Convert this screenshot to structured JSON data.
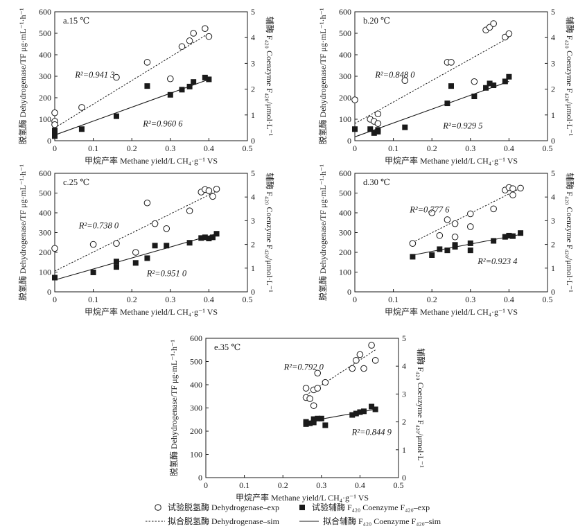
{
  "figure": {
    "x_axis_label": "甲烷产率 Methane yield/L CH₄·g⁻¹ VS",
    "left_axis_label": "脱氢酶 Dehydrogenase/TF μg·mL⁻¹·h⁻¹",
    "right_axis_label": "辅酶 F₄₂₀ Coenzyme F₄₂₀/μmol·L⁻¹",
    "legend": [
      {
        "key": "dh_exp",
        "label": "试验脱氢酶 Dehydrogenase–exp"
      },
      {
        "key": "f420_exp",
        "label": "试验辅酶 F₄₂₀ Coenzyme F₄₂₀–exp"
      },
      {
        "key": "dh_sim",
        "label": "拟合脱氢酶 Dehydrogenase–sim"
      },
      {
        "key": "f420_sim",
        "label": "拟合辅酶 F₄₂₀ Coenzyme F₄₂₀–sim"
      }
    ]
  },
  "chart_data": [
    {
      "type": "scatter",
      "panel_label": "a.15 ℃",
      "xlim": [
        0,
        0.5
      ],
      "xticks": [
        0,
        0.1,
        0.2,
        0.3,
        0.4,
        0.5
      ],
      "ylim_left": [
        0,
        600
      ],
      "yticks_left": [
        0,
        100,
        200,
        300,
        400,
        500,
        600
      ],
      "ylim_right": [
        0,
        5
      ],
      "yticks_right": [
        0,
        1,
        2,
        3,
        4,
        5
      ],
      "dehydrogenase_exp": [
        [
          0,
          130
        ],
        [
          0,
          90
        ],
        [
          0,
          75
        ],
        [
          0.07,
          155
        ],
        [
          0.16,
          295
        ],
        [
          0.24,
          365
        ],
        [
          0.3,
          288
        ],
        [
          0.33,
          438
        ],
        [
          0.35,
          465
        ],
        [
          0.36,
          500
        ],
        [
          0.39,
          522
        ],
        [
          0.4,
          485
        ]
      ],
      "f420_exp": [
        [
          0,
          0.4
        ],
        [
          0,
          0.3
        ],
        [
          0,
          0.22
        ],
        [
          0,
          0.18
        ],
        [
          0.07,
          0.45
        ],
        [
          0.16,
          0.95
        ],
        [
          0.24,
          2.12
        ],
        [
          0.3,
          1.78
        ],
        [
          0.33,
          1.98
        ],
        [
          0.35,
          2.1
        ],
        [
          0.36,
          2.28
        ],
        [
          0.39,
          2.45
        ],
        [
          0.4,
          2.38
        ]
      ],
      "dehydrogenase_fit": [
        [
          0,
          60
        ],
        [
          0.4,
          500
        ]
      ],
      "f420_fit": [
        [
          0,
          0.22
        ],
        [
          0.4,
          2.38
        ]
      ],
      "r2_dehydrogenase": "R²=0.941 3",
      "r2_f420": "R²=0.960 6"
    },
    {
      "type": "scatter",
      "panel_label": "b.20 ℃",
      "xlim": [
        0,
        0.5
      ],
      "xticks": [
        0,
        0.1,
        0.2,
        0.3,
        0.4,
        0.5
      ],
      "ylim_left": [
        0,
        600
      ],
      "yticks_left": [
        0,
        100,
        200,
        300,
        400,
        500,
        600
      ],
      "ylim_right": [
        0,
        5
      ],
      "yticks_right": [
        0,
        1,
        2,
        3,
        4,
        5
      ],
      "dehydrogenase_exp": [
        [
          0,
          190
        ],
        [
          0.04,
          100
        ],
        [
          0.05,
          90
        ],
        [
          0.06,
          125
        ],
        [
          0.06,
          80
        ],
        [
          0.13,
          280
        ],
        [
          0.24,
          365
        ],
        [
          0.25,
          365
        ],
        [
          0.31,
          275
        ],
        [
          0.34,
          515
        ],
        [
          0.35,
          528
        ],
        [
          0.36,
          545
        ],
        [
          0.39,
          482
        ],
        [
          0.4,
          498
        ]
      ],
      "f420_exp": [
        [
          0,
          0.45
        ],
        [
          0.04,
          0.45
        ],
        [
          0.05,
          0.3
        ],
        [
          0.06,
          0.42
        ],
        [
          0.06,
          0.35
        ],
        [
          0.13,
          0.52
        ],
        [
          0.24,
          1.45
        ],
        [
          0.25,
          2.12
        ],
        [
          0.31,
          1.72
        ],
        [
          0.34,
          2.05
        ],
        [
          0.35,
          2.22
        ],
        [
          0.36,
          2.15
        ],
        [
          0.39,
          2.3
        ],
        [
          0.4,
          2.48
        ]
      ],
      "dehydrogenase_fit": [
        [
          0,
          80
        ],
        [
          0.4,
          480
        ]
      ],
      "f420_fit": [
        [
          0,
          0.15
        ],
        [
          0.4,
          2.3
        ]
      ],
      "r2_dehydrogenase": "R²=0.848 0",
      "r2_f420": "R²=0.929 5"
    },
    {
      "type": "scatter",
      "panel_label": "c.25 ℃",
      "xlim": [
        0,
        0.5
      ],
      "xticks": [
        0,
        0.1,
        0.2,
        0.3,
        0.4,
        0.5
      ],
      "ylim_left": [
        0,
        600
      ],
      "yticks_left": [
        0,
        100,
        200,
        300,
        400,
        500,
        600
      ],
      "ylim_right": [
        0,
        5
      ],
      "yticks_right": [
        0,
        1,
        2,
        3,
        4,
        5
      ],
      "dehydrogenase_exp": [
        [
          0,
          220
        ],
        [
          0.1,
          240
        ],
        [
          0.16,
          245
        ],
        [
          0.21,
          200
        ],
        [
          0.24,
          450
        ],
        [
          0.26,
          345
        ],
        [
          0.29,
          320
        ],
        [
          0.35,
          410
        ],
        [
          0.38,
          505
        ],
        [
          0.39,
          518
        ],
        [
          0.4,
          512
        ],
        [
          0.41,
          483
        ],
        [
          0.42,
          520
        ]
      ],
      "f420_exp": [
        [
          0,
          0.6
        ],
        [
          0.1,
          0.82
        ],
        [
          0.16,
          1.05
        ],
        [
          0.16,
          1.28
        ],
        [
          0.21,
          1.22
        ],
        [
          0.24,
          1.42
        ],
        [
          0.26,
          1.95
        ],
        [
          0.29,
          1.95
        ],
        [
          0.35,
          2.07
        ],
        [
          0.38,
          2.27
        ],
        [
          0.39,
          2.3
        ],
        [
          0.4,
          2.25
        ],
        [
          0.41,
          2.3
        ],
        [
          0.42,
          2.45
        ]
      ],
      "dehydrogenase_fit": [
        [
          0,
          105
        ],
        [
          0.42,
          510
        ]
      ],
      "f420_fit": [
        [
          0,
          0.5
        ],
        [
          0.42,
          2.45
        ]
      ],
      "r2_dehydrogenase": "R²=0.738 0",
      "r2_f420": "R²=0.951 0"
    },
    {
      "type": "scatter",
      "panel_label": "d.30 ℃",
      "xlim": [
        0,
        0.5
      ],
      "xticks": [
        0,
        0.1,
        0.2,
        0.3,
        0.4,
        0.5
      ],
      "ylim_left": [
        0,
        600
      ],
      "yticks_left": [
        0,
        100,
        200,
        300,
        400,
        500,
        600
      ],
      "ylim_right": [
        0,
        5
      ],
      "yticks_right": [
        0,
        1,
        2,
        3,
        4,
        5
      ],
      "dehydrogenase_exp": [
        [
          0.15,
          245
        ],
        [
          0.2,
          400
        ],
        [
          0.22,
          285
        ],
        [
          0.24,
          365
        ],
        [
          0.26,
          345
        ],
        [
          0.26,
          278
        ],
        [
          0.3,
          330
        ],
        [
          0.3,
          395
        ],
        [
          0.36,
          420
        ],
        [
          0.39,
          515
        ],
        [
          0.4,
          528
        ],
        [
          0.41,
          490
        ],
        [
          0.41,
          522
        ],
        [
          0.43,
          525
        ]
      ],
      "f420_exp": [
        [
          0.15,
          1.48
        ],
        [
          0.2,
          1.55
        ],
        [
          0.22,
          1.8
        ],
        [
          0.24,
          1.75
        ],
        [
          0.26,
          1.9
        ],
        [
          0.26,
          1.98
        ],
        [
          0.3,
          1.75
        ],
        [
          0.3,
          2.05
        ],
        [
          0.36,
          2.15
        ],
        [
          0.39,
          2.32
        ],
        [
          0.4,
          2.37
        ],
        [
          0.41,
          2.35
        ],
        [
          0.43,
          2.48
        ]
      ],
      "dehydrogenase_fit": [
        [
          0.15,
          250
        ],
        [
          0.43,
          525
        ]
      ],
      "f420_fit": [
        [
          0.15,
          1.55
        ],
        [
          0.43,
          2.42
        ]
      ],
      "r2_dehydrogenase": "R²=0.777 6",
      "r2_f420": "R²=0.923 4"
    },
    {
      "type": "scatter",
      "panel_label": "e.35 ℃",
      "xlim": [
        0,
        0.5
      ],
      "xticks": [
        0,
        0.1,
        0.2,
        0.3,
        0.4,
        0.5
      ],
      "ylim_left": [
        0,
        600
      ],
      "yticks_left": [
        0,
        100,
        200,
        300,
        400,
        500,
        600
      ],
      "ylim_right": [
        0,
        5
      ],
      "yticks_right": [
        0,
        1,
        2,
        3,
        4,
        5
      ],
      "dehydrogenase_exp": [
        [
          0.26,
          385
        ],
        [
          0.26,
          345
        ],
        [
          0.27,
          340
        ],
        [
          0.28,
          310
        ],
        [
          0.28,
          378
        ],
        [
          0.29,
          450
        ],
        [
          0.29,
          385
        ],
        [
          0.31,
          410
        ],
        [
          0.38,
          470
        ],
        [
          0.39,
          505
        ],
        [
          0.4,
          530
        ],
        [
          0.41,
          470
        ],
        [
          0.43,
          570
        ],
        [
          0.44,
          505
        ]
      ],
      "f420_exp": [
        [
          0.26,
          1.92
        ],
        [
          0.26,
          2.0
        ],
        [
          0.27,
          1.95
        ],
        [
          0.28,
          2.1
        ],
        [
          0.28,
          1.98
        ],
        [
          0.29,
          2.12
        ],
        [
          0.3,
          2.12
        ],
        [
          0.31,
          1.88
        ],
        [
          0.38,
          2.25
        ],
        [
          0.39,
          2.3
        ],
        [
          0.4,
          2.35
        ],
        [
          0.41,
          2.38
        ],
        [
          0.43,
          2.55
        ],
        [
          0.44,
          2.45
        ]
      ],
      "dehydrogenase_fit": [
        [
          0.26,
          355
        ],
        [
          0.44,
          550
        ]
      ],
      "f420_fit": [
        [
          0.26,
          2.0
        ],
        [
          0.44,
          2.45
        ]
      ],
      "r2_dehydrogenase": "R²=0.792 0",
      "r2_f420": "R²=0.844 9"
    }
  ]
}
